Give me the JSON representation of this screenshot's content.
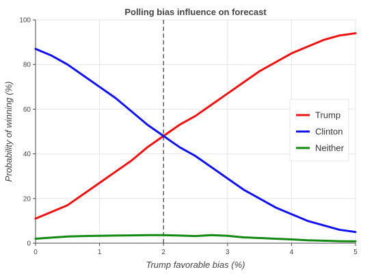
{
  "chart_data": {
    "type": "line",
    "title": "Polling bias influence on forecast",
    "xlabel": "Trump favorable bias (%)",
    "ylabel": "Probability of winning (%)",
    "xlim": [
      0,
      5
    ],
    "ylim": [
      0,
      100
    ],
    "xticks": [
      0,
      1,
      2,
      3,
      4,
      5
    ],
    "yticks": [
      0,
      20,
      40,
      60,
      80,
      100
    ],
    "grid": true,
    "legend_position": "right",
    "reference_line": {
      "x": 2,
      "style": "dashed",
      "color": "#333333"
    },
    "x": [
      0,
      0.25,
      0.5,
      0.75,
      1.0,
      1.25,
      1.5,
      1.75,
      2.0,
      2.25,
      2.5,
      2.75,
      3.0,
      3.25,
      3.5,
      3.75,
      4.0,
      4.25,
      4.5,
      4.75,
      5.0
    ],
    "series": [
      {
        "name": "Trump",
        "color": "#ee1111",
        "values": [
          11,
          14,
          17,
          22,
          27,
          32,
          37,
          43,
          48,
          53,
          57,
          62,
          67,
          72,
          77,
          81,
          85,
          88,
          91,
          93,
          94
        ]
      },
      {
        "name": "Clinton",
        "color": "#1111ee",
        "values": [
          87,
          84,
          80,
          75,
          70,
          65,
          59,
          53,
          48,
          43,
          39,
          34,
          29,
          24,
          20,
          16,
          13,
          10,
          8,
          6,
          5
        ]
      },
      {
        "name": "Neither",
        "color": "#118811",
        "values": [
          2,
          2.5,
          3,
          3.2,
          3.3,
          3.4,
          3.5,
          3.6,
          3.6,
          3.4,
          3.2,
          3.6,
          3.3,
          2.6,
          2.3,
          2.0,
          1.7,
          1.3,
          1.1,
          0.9,
          0.8
        ]
      }
    ]
  }
}
